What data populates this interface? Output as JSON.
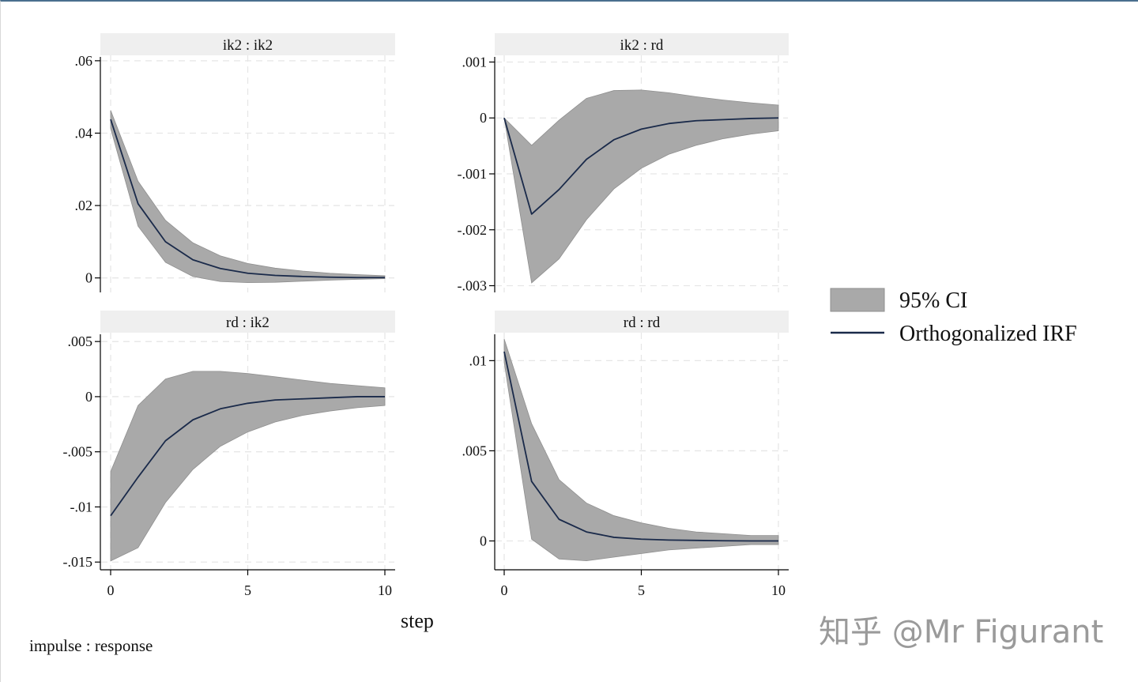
{
  "colors": {
    "ci_fill": "#a9a9a9",
    "ci_edge": "#8f8f8f",
    "irf_line": "#1a2a4a",
    "strip_bg": "#efefef",
    "grid": "#e6e6e6"
  },
  "chart_data": {
    "type": "area",
    "xlabel": "step",
    "note": "impulse : response",
    "watermark": "知乎 @Mr Figurant",
    "legend": {
      "placement": "right",
      "entries": [
        {
          "key": "ci",
          "label": "95% CI"
        },
        {
          "key": "irf",
          "label": "Orthogonalized IRF"
        }
      ]
    },
    "grid": true,
    "x": [
      0,
      1,
      2,
      3,
      4,
      5,
      6,
      7,
      8,
      9,
      10
    ],
    "panels": [
      {
        "title": "ik2 : ik2",
        "xlim": [
          0,
          10
        ],
        "ylim": [
          -0.004,
          0.0615
        ],
        "yticks": [
          {
            "v": 0.06,
            "label": ".06"
          },
          {
            "v": 0.04,
            "label": ".04"
          },
          {
            "v": 0.02,
            "label": ".02"
          },
          {
            "v": 0,
            "label": "0"
          }
        ],
        "xticks": [],
        "irf": [
          0.0438,
          0.0205,
          0.01,
          0.005,
          0.0026,
          0.0013,
          0.0007,
          0.0004,
          0.0002,
          0.0001,
          0.0001
        ],
        "ci_lower": [
          0.0413,
          0.0143,
          0.0043,
          0.0004,
          -0.001,
          -0.0013,
          -0.0012,
          -0.0009,
          -0.0006,
          -0.0004,
          -0.0002
        ],
        "ci_upper": [
          0.0463,
          0.0267,
          0.0159,
          0.0097,
          0.0061,
          0.004,
          0.0027,
          0.0019,
          0.0013,
          0.0009,
          0.0006
        ]
      },
      {
        "title": "ik2 : rd",
        "xlim": [
          0,
          10
        ],
        "ylim": [
          -0.00312,
          0.00112
        ],
        "yticks": [
          {
            "v": 0.001,
            "label": ".001"
          },
          {
            "v": 0,
            "label": "0"
          },
          {
            "v": -0.001,
            "label": "-.001"
          },
          {
            "v": -0.002,
            "label": "-.002"
          },
          {
            "v": -0.003,
            "label": "-.003"
          }
        ],
        "xticks": [],
        "irf": [
          0,
          -0.00172,
          -0.00128,
          -0.00074,
          -0.00039,
          -0.0002,
          -0.0001,
          -5e-05,
          -3e-05,
          -1e-05,
          0
        ],
        "ci_lower": [
          0,
          -0.00295,
          -0.00252,
          -0.00182,
          -0.00127,
          -0.0009,
          -0.00065,
          -0.00049,
          -0.00037,
          -0.00029,
          -0.00023
        ],
        "ci_upper": [
          0,
          -0.00049,
          -4e-05,
          0.00035,
          0.00049,
          0.0005,
          0.00045,
          0.00038,
          0.00032,
          0.00027,
          0.00023
        ]
      },
      {
        "title": "rd : ik2",
        "xlim": [
          0,
          10
        ],
        "ylim": [
          -0.0157,
          0.0058
        ],
        "yticks": [
          {
            "v": 0.005,
            "label": ".005"
          },
          {
            "v": 0,
            "label": "0"
          },
          {
            "v": -0.005,
            "label": "-.005"
          },
          {
            "v": -0.01,
            "label": "-.01"
          },
          {
            "v": -0.015,
            "label": "-.015"
          }
        ],
        "xticks": [
          {
            "v": 0,
            "label": "0"
          },
          {
            "v": 5,
            "label": "5"
          },
          {
            "v": 10,
            "label": "10"
          }
        ],
        "irf": [
          -0.0108,
          -0.0073,
          -0.004,
          -0.0021,
          -0.0011,
          -0.0006,
          -0.0003,
          -0.0002,
          -0.0001,
          0,
          0
        ],
        "ci_lower": [
          -0.0149,
          -0.0137,
          -0.0096,
          -0.0066,
          -0.0045,
          -0.0032,
          -0.0023,
          -0.0017,
          -0.0013,
          -0.001,
          -0.0008
        ],
        "ci_upper": [
          -0.0068,
          -0.0008,
          0.0016,
          0.0023,
          0.0023,
          0.0021,
          0.0018,
          0.0015,
          0.0012,
          0.001,
          0.0008
        ]
      },
      {
        "title": "rd : rd",
        "xlim": [
          0,
          10
        ],
        "ylim": [
          -0.0016,
          0.01155
        ],
        "yticks": [
          {
            "v": 0.01,
            "label": ".01"
          },
          {
            "v": 0.005,
            "label": ".005"
          },
          {
            "v": 0,
            "label": "0"
          }
        ],
        "xticks": [
          {
            "v": 0,
            "label": "0"
          },
          {
            "v": 5,
            "label": "5"
          },
          {
            "v": 10,
            "label": "10"
          }
        ],
        "irf": [
          0.0105,
          0.0033,
          0.0012,
          0.0005,
          0.0002,
          0.0001,
          5e-05,
          3e-05,
          1e-05,
          0,
          0
        ],
        "ci_lower": [
          0.0099,
          0.0001,
          -0.001,
          -0.0011,
          -0.0009,
          -0.0007,
          -0.0005,
          -0.0004,
          -0.0003,
          -0.0002,
          -0.0002
        ],
        "ci_upper": [
          0.0112,
          0.0065,
          0.0034,
          0.0021,
          0.0014,
          0.001,
          0.0007,
          0.0005,
          0.0004,
          0.0003,
          0.0003
        ]
      }
    ]
  }
}
